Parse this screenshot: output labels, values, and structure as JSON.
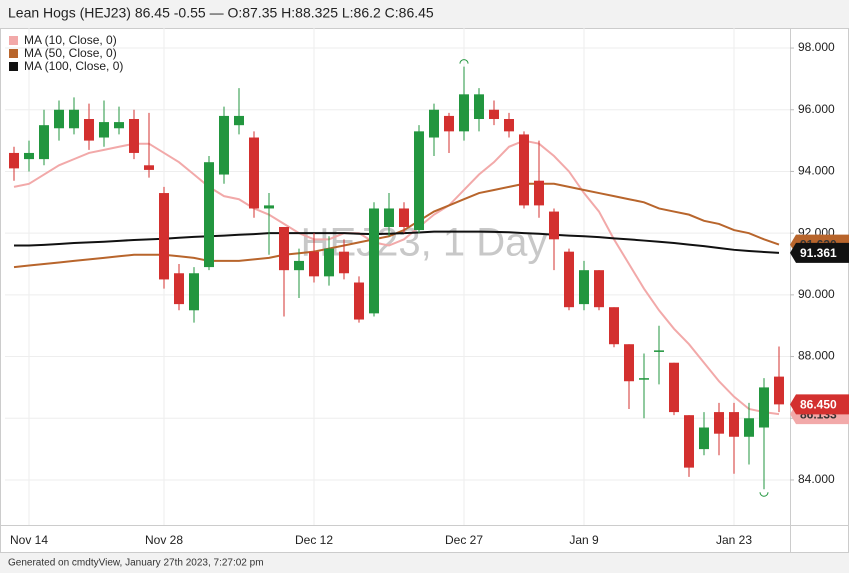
{
  "chart_data": {
    "type": "candlestick",
    "title": "Lean Hogs (HEJ23) 86.45 -0.55 — O:87.35 H:88.325 L:86.2 C:86.45",
    "watermark": "HEJ23, 1 Day",
    "footer": "Generated on cmdtyView, January 27th 2023, 7:27:02 pm",
    "categories": [
      null,
      "Nov 14",
      null,
      null,
      null,
      null,
      null,
      null,
      null,
      null,
      "Nov 28",
      null,
      null,
      null,
      null,
      null,
      null,
      null,
      null,
      null,
      "Dec 12",
      null,
      null,
      null,
      null,
      null,
      null,
      null,
      null,
      null,
      "Dec 27",
      null,
      null,
      null,
      null,
      null,
      null,
      null,
      "Jan 9",
      null,
      null,
      null,
      null,
      null,
      null,
      null,
      null,
      null,
      "Jan 23",
      null,
      null,
      null
    ],
    "open": [
      94.6,
      94.4,
      94.4,
      95.4,
      95.4,
      95.7,
      95.1,
      95.4,
      95.7,
      94.2,
      93.3,
      90.7,
      89.5,
      90.9,
      93.9,
      95.5,
      95.1,
      92.8,
      92.2,
      90.8,
      91.4,
      90.6,
      91.4,
      90.4,
      89.4,
      92.2,
      92.8,
      92.1,
      95.1,
      95.8,
      95.3,
      95.7,
      96.0,
      95.7,
      95.2,
      93.7,
      92.7,
      91.4,
      89.7,
      90.8,
      89.6,
      88.4,
      87.25,
      88.15,
      87.8,
      86.1,
      85.0,
      86.2,
      86.2,
      85.4,
      85.7,
      87.35
    ],
    "high": [
      94.8,
      95.0,
      96.0,
      96.3,
      96.4,
      96.2,
      96.3,
      96.1,
      96.0,
      95.9,
      93.5,
      91.0,
      90.9,
      94.5,
      96.1,
      96.7,
      95.3,
      93.3,
      92.2,
      91.5,
      92.0,
      91.9,
      91.8,
      90.6,
      93.0,
      93.3,
      93.0,
      95.5,
      96.2,
      95.9,
      97.4,
      96.7,
      96.3,
      95.9,
      95.3,
      95.0,
      92.8,
      91.5,
      91.1,
      90.8,
      89.6,
      88.4,
      88.1,
      89.0,
      87.8,
      86.1,
      86.2,
      86.5,
      86.5,
      86.5,
      87.3,
      88.325
    ],
    "low": [
      93.7,
      94.0,
      94.2,
      95.0,
      95.2,
      94.7,
      94.8,
      95.2,
      94.4,
      93.8,
      90.2,
      89.5,
      89.1,
      90.8,
      93.6,
      95.2,
      92.5,
      91.3,
      89.3,
      89.9,
      90.4,
      90.3,
      90.5,
      89.1,
      89.3,
      91.9,
      92.0,
      92.0,
      94.5,
      94.6,
      95.0,
      95.3,
      95.5,
      95.1,
      92.8,
      92.5,
      90.8,
      89.5,
      89.5,
      89.5,
      88.3,
      86.3,
      86.0,
      87.1,
      86.1,
      84.1,
      84.8,
      84.8,
      84.2,
      84.5,
      83.7,
      86.2
    ],
    "close": [
      94.1,
      94.6,
      95.5,
      96.0,
      96.0,
      95.0,
      95.6,
      95.6,
      94.6,
      94.05,
      90.5,
      89.7,
      90.7,
      94.3,
      95.8,
      95.8,
      92.8,
      92.9,
      90.8,
      91.1,
      90.6,
      91.5,
      90.7,
      89.2,
      92.8,
      92.8,
      92.2,
      95.3,
      96.0,
      95.3,
      96.5,
      96.5,
      95.7,
      95.3,
      92.9,
      92.9,
      91.8,
      89.6,
      90.8,
      89.6,
      88.4,
      87.2,
      87.3,
      88.2,
      86.2,
      84.4,
      85.7,
      85.5,
      85.4,
      86.0,
      87.0,
      86.45
    ],
    "last_label": "86.450",
    "up_color": "#22963f",
    "down_color": "#d3302f",
    "series": [
      {
        "name": "MA (10, Close, 0)",
        "color": "#f2a9a9",
        "last_label": "86.133",
        "values": [
          93.5,
          93.6,
          93.9,
          94.2,
          94.4,
          94.6,
          94.7,
          94.8,
          94.9,
          94.9,
          94.6,
          94.3,
          93.9,
          93.5,
          93.2,
          93.1,
          92.8,
          92.6,
          92.3,
          92.0,
          91.8,
          91.8,
          92.0,
          92.0,
          91.7,
          91.6,
          91.8,
          92.2,
          92.6,
          92.9,
          93.4,
          93.9,
          94.3,
          94.8,
          95.0,
          94.9,
          94.5,
          94.0,
          93.3,
          92.7,
          91.8,
          91.0,
          90.2,
          89.5,
          88.9,
          88.4,
          87.8,
          87.2,
          86.7,
          86.3,
          86.2,
          86.133
        ]
      },
      {
        "name": "MA (50, Close, 0)",
        "color": "#b8652c",
        "last_label": "91.630",
        "values": [
          90.9,
          90.95,
          91.0,
          91.05,
          91.1,
          91.15,
          91.2,
          91.25,
          91.3,
          91.3,
          91.3,
          91.25,
          91.2,
          91.1,
          91.1,
          91.1,
          91.15,
          91.2,
          91.3,
          91.35,
          91.4,
          91.5,
          91.6,
          91.7,
          91.8,
          91.9,
          92.1,
          92.4,
          92.7,
          92.9,
          93.1,
          93.3,
          93.4,
          93.5,
          93.6,
          93.6,
          93.6,
          93.5,
          93.4,
          93.3,
          93.2,
          93.1,
          93.0,
          92.8,
          92.7,
          92.6,
          92.4,
          92.3,
          92.1,
          92.0,
          91.8,
          91.63
        ]
      },
      {
        "name": "MA (100, Close, 0)",
        "color": "#111111",
        "last_label": "91.361",
        "values": [
          91.6,
          91.6,
          91.62,
          91.65,
          91.68,
          91.7,
          91.72,
          91.75,
          91.78,
          91.8,
          91.82,
          91.85,
          91.88,
          91.9,
          91.92,
          91.95,
          91.97,
          92.0,
          92.0,
          92.0,
          92.0,
          92.0,
          92.0,
          91.98,
          91.97,
          91.98,
          92.0,
          92.02,
          92.05,
          92.05,
          92.05,
          92.05,
          92.04,
          92.03,
          92.0,
          91.98,
          91.95,
          91.92,
          91.9,
          91.87,
          91.83,
          91.8,
          91.76,
          91.72,
          91.68,
          91.63,
          91.58,
          91.52,
          91.46,
          91.42,
          91.39,
          91.361
        ]
      }
    ],
    "ylim": [
      82.54,
      98.65
    ],
    "yticks": [
      {
        "value": 84,
        "label": "84.000"
      },
      {
        "value": 86,
        "label": "86.000"
      },
      {
        "value": 88,
        "label": "88.000"
      },
      {
        "value": 90,
        "label": "90.000"
      },
      {
        "value": 92,
        "label": "92.000"
      },
      {
        "value": 94,
        "label": "94.000"
      },
      {
        "value": 96,
        "label": "96.000"
      },
      {
        "value": 98,
        "label": "98.000"
      }
    ],
    "grid": true
  }
}
